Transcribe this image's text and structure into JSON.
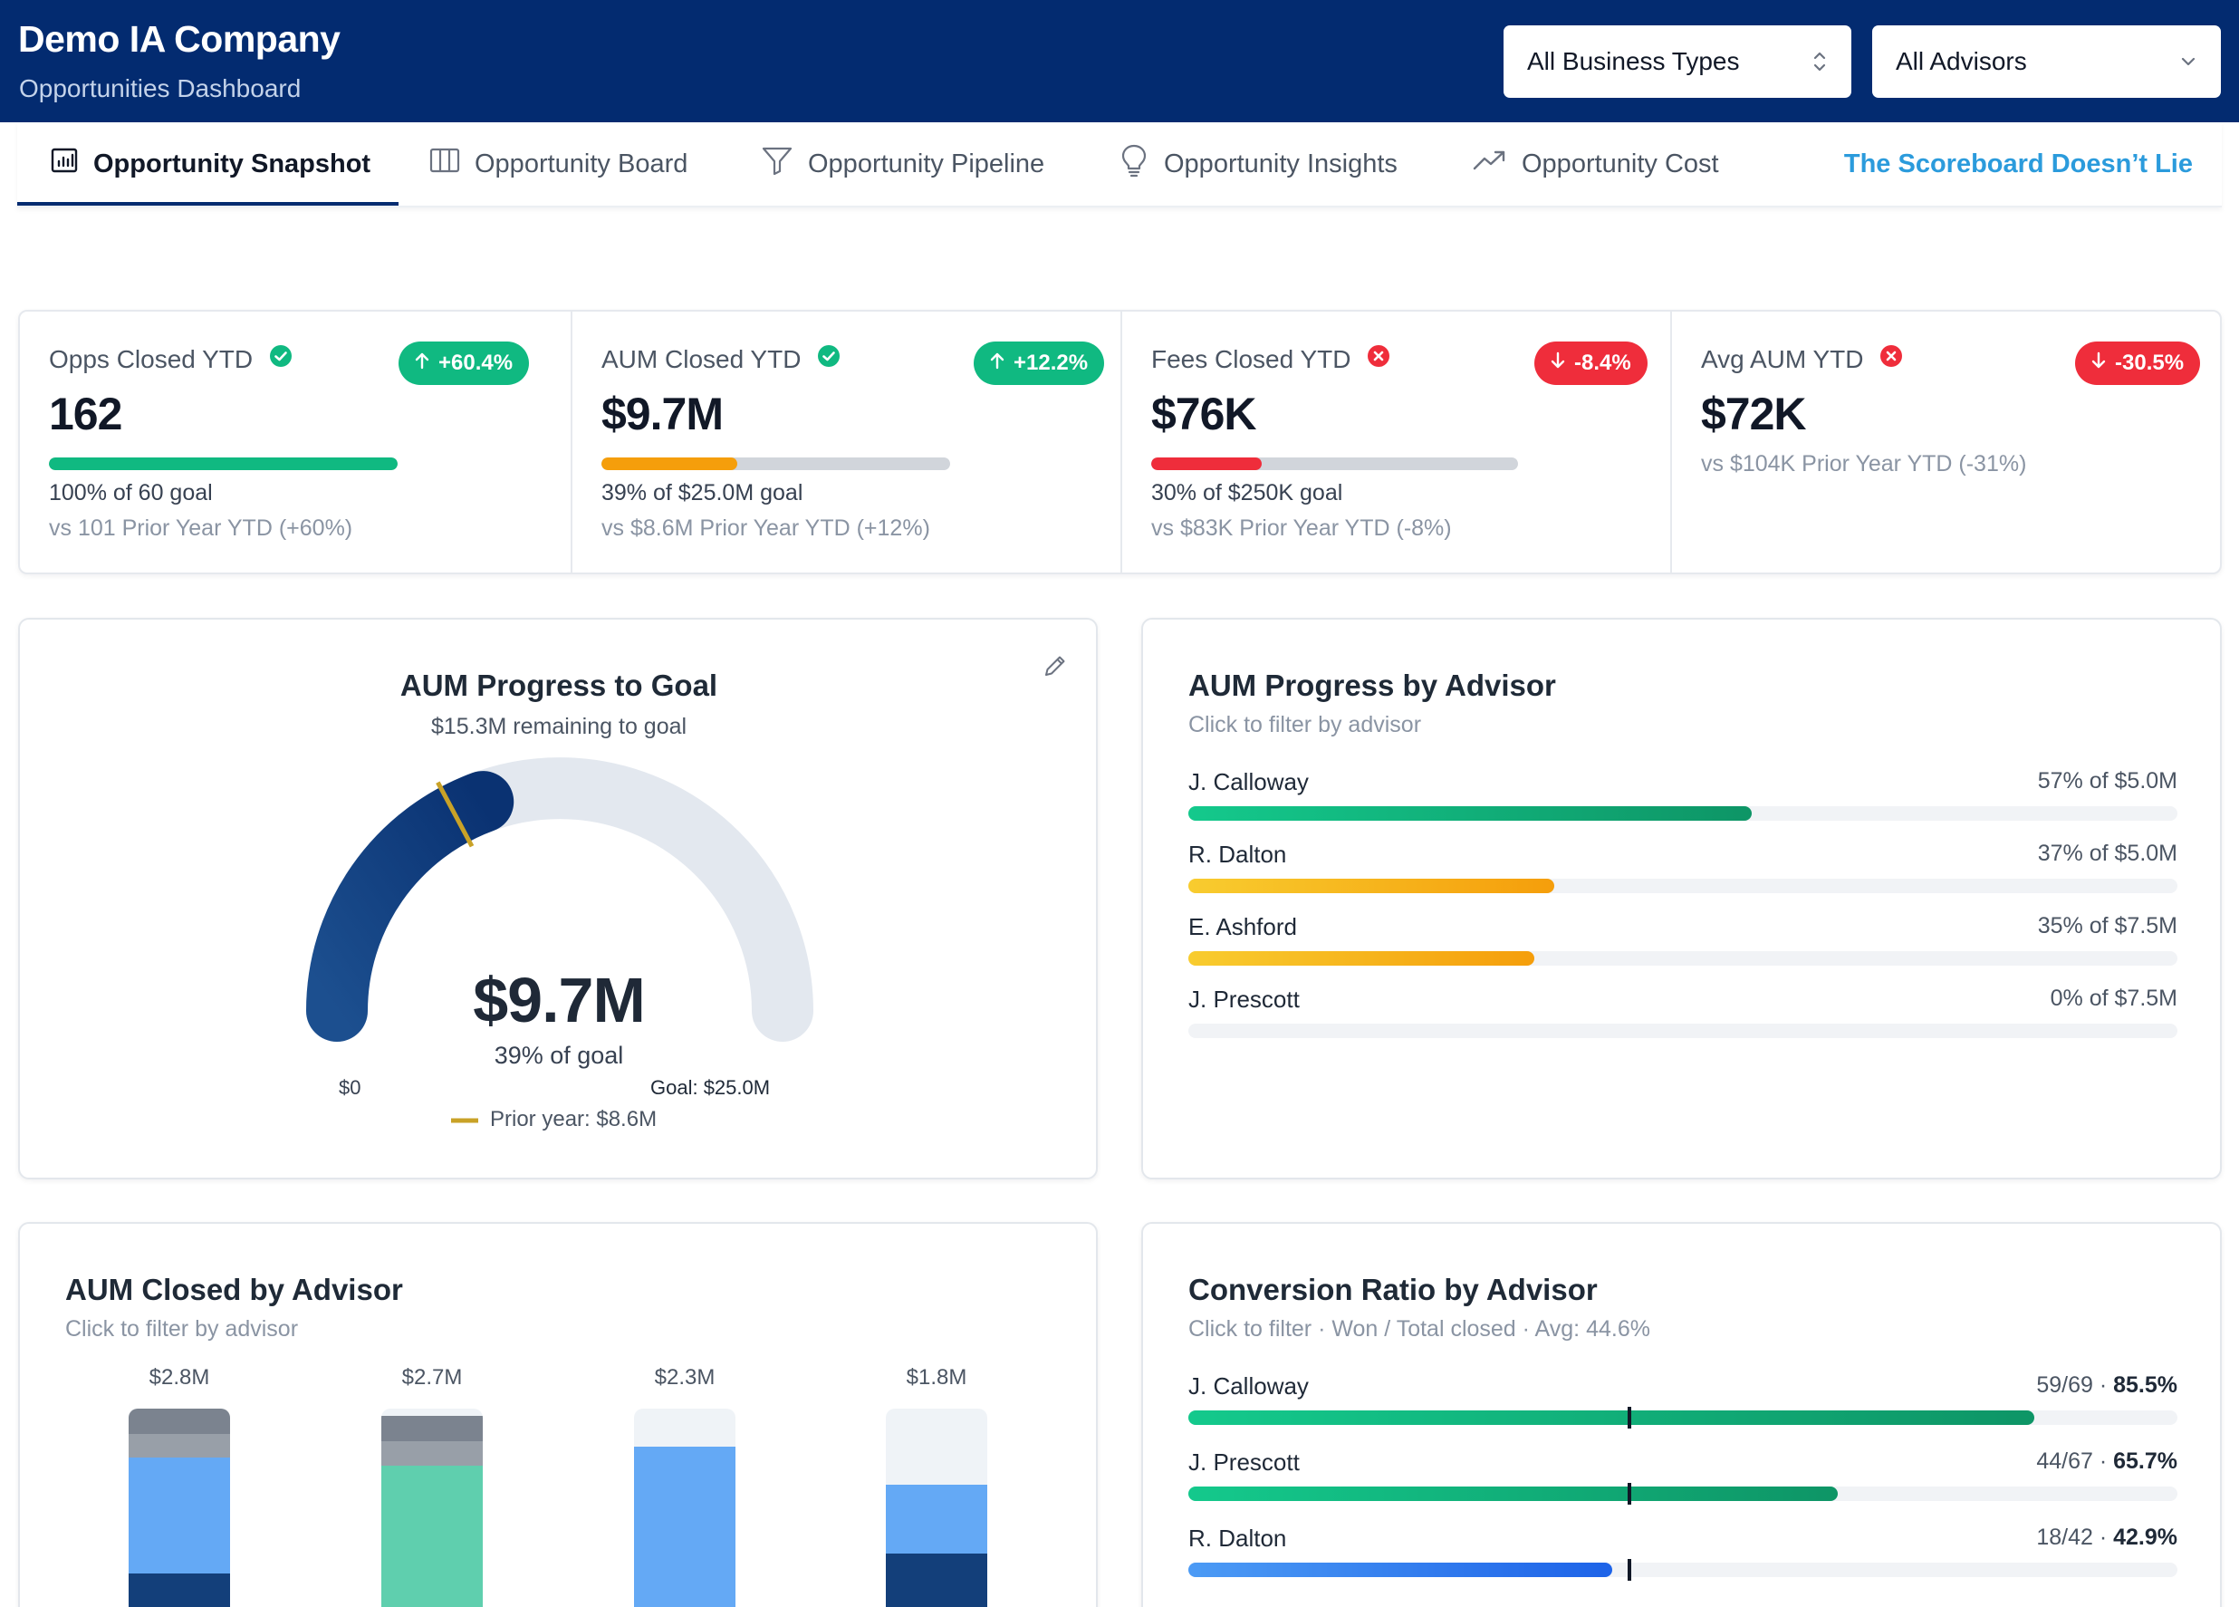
{
  "header": {
    "title": "Demo IA Company",
    "subtitle": "Opportunities Dashboard",
    "business_filter": "All Business Types",
    "advisor_filter": "All Advisors"
  },
  "tabs": [
    {
      "label": "Opportunity Snapshot",
      "icon": "bar-chart-icon",
      "active": true
    },
    {
      "label": "Opportunity Board",
      "icon": "columns-icon",
      "active": false
    },
    {
      "label": "Opportunity Pipeline",
      "icon": "funnel-icon",
      "active": false
    },
    {
      "label": "Opportunity Insights",
      "icon": "lightbulb-icon",
      "active": false
    },
    {
      "label": "Opportunity Cost",
      "icon": "trending-up-icon",
      "active": false
    }
  ],
  "tab_link": "The Scoreboard Doesn’t Lie",
  "kpis": [
    {
      "label": "Opps Closed YTD",
      "status": "met",
      "badge": "+60.4%",
      "badge_dir": "up",
      "value": "162",
      "progress": 1.0,
      "bar_color": "#10b981",
      "goal_text": "100% of 60 goal",
      "prior_text": "vs 101 Prior Year YTD (+60%)"
    },
    {
      "label": "AUM Closed YTD",
      "status": "met",
      "badge": "+12.2%",
      "badge_dir": "up",
      "value": "$9.7M",
      "progress": 0.39,
      "bar_color": "#f59e0b",
      "goal_text": "39% of $25.0M goal",
      "prior_text": "vs $8.6M Prior Year YTD (+12%)"
    },
    {
      "label": "Fees Closed YTD",
      "status": "missed",
      "badge": "-8.4%",
      "badge_dir": "down",
      "value": "$76K",
      "progress": 0.3,
      "bar_color": "#ef2d3b",
      "goal_text": "30% of $250K goal",
      "prior_text": "vs $83K Prior Year YTD (-8%)"
    },
    {
      "label": "Avg AUM YTD",
      "status": "missed",
      "badge": "-30.5%",
      "badge_dir": "down",
      "value": "$72K",
      "progress": null,
      "bar_color": null,
      "goal_text": "",
      "prior_text": "vs $104K Prior Year YTD (-31%)"
    }
  ],
  "gauge": {
    "title": "AUM Progress to Goal",
    "subtitle": "$15.3M remaining to goal",
    "value_text": "$9.7M",
    "pct_text": "39% of goal",
    "min_label": "$0",
    "goal_label": "Goal: $25.0M",
    "prior_label": "Prior year: $8.6M",
    "value": 9.7,
    "goal": 25.0,
    "prior": 8.6
  },
  "aum_progress": {
    "title": "AUM Progress by Advisor",
    "subtitle": "Click to filter by advisor",
    "rows": [
      {
        "name": "J. Calloway",
        "label": "57% of $5.0M",
        "pct": 0.57,
        "color": "green"
      },
      {
        "name": "R. Dalton",
        "label": "37% of $5.0M",
        "pct": 0.37,
        "color": "amber"
      },
      {
        "name": "E. Ashford",
        "label": "35% of $7.5M",
        "pct": 0.35,
        "color": "amber"
      },
      {
        "name": "J. Prescott",
        "label": "0% of $7.5M",
        "pct": 0.0,
        "color": "none"
      }
    ]
  },
  "aum_closed": {
    "title": "AUM Closed by Advisor",
    "subtitle": "Click to filter by advisor"
  },
  "conversion": {
    "title": "Conversion Ratio by Advisor",
    "subtitle": "Click to filter · Won / Total closed · Avg: 44.6%",
    "avg": 0.446,
    "rows": [
      {
        "name": "J. Calloway",
        "count": "59/69 · ",
        "pct_text": "85.5%",
        "pct": 0.855,
        "color": "green"
      },
      {
        "name": "J. Prescott",
        "count": "44/67 · ",
        "pct_text": "65.7%",
        "pct": 0.657,
        "color": "green"
      },
      {
        "name": "R. Dalton",
        "count": "18/42 · ",
        "pct_text": "42.9%",
        "pct": 0.429,
        "color": "blue"
      }
    ]
  },
  "chart_data": {
    "type": "bar",
    "title": "AUM Closed by Advisor",
    "categories": [
      "",
      "",
      "",
      ""
    ],
    "values_labels": [
      "$2.8M",
      "$2.7M",
      "$2.3M",
      "$1.8M"
    ],
    "values": [
      2.8,
      2.7,
      2.3,
      1.8
    ],
    "ylim": [
      0,
      2.8
    ],
    "segments": [
      [
        {
          "color": "#7b838f",
          "share": 0.12
        },
        {
          "color": "#989fa8",
          "share": 0.11
        },
        {
          "color": "#64a9f5",
          "share": 0.54
        },
        {
          "color": "#133f7a",
          "share": 0.23
        }
      ],
      [
        {
          "color": "#7b838f",
          "share": 0.12
        },
        {
          "color": "#989fa8",
          "share": 0.12
        },
        {
          "color": "#5fcfae",
          "share": 0.76
        }
      ],
      [
        {
          "color": "#64a9f5",
          "share": 1.0
        }
      ],
      [
        {
          "color": "#64a9f5",
          "share": 0.5
        },
        {
          "color": "#133f7a",
          "share": 0.5
        }
      ]
    ]
  }
}
